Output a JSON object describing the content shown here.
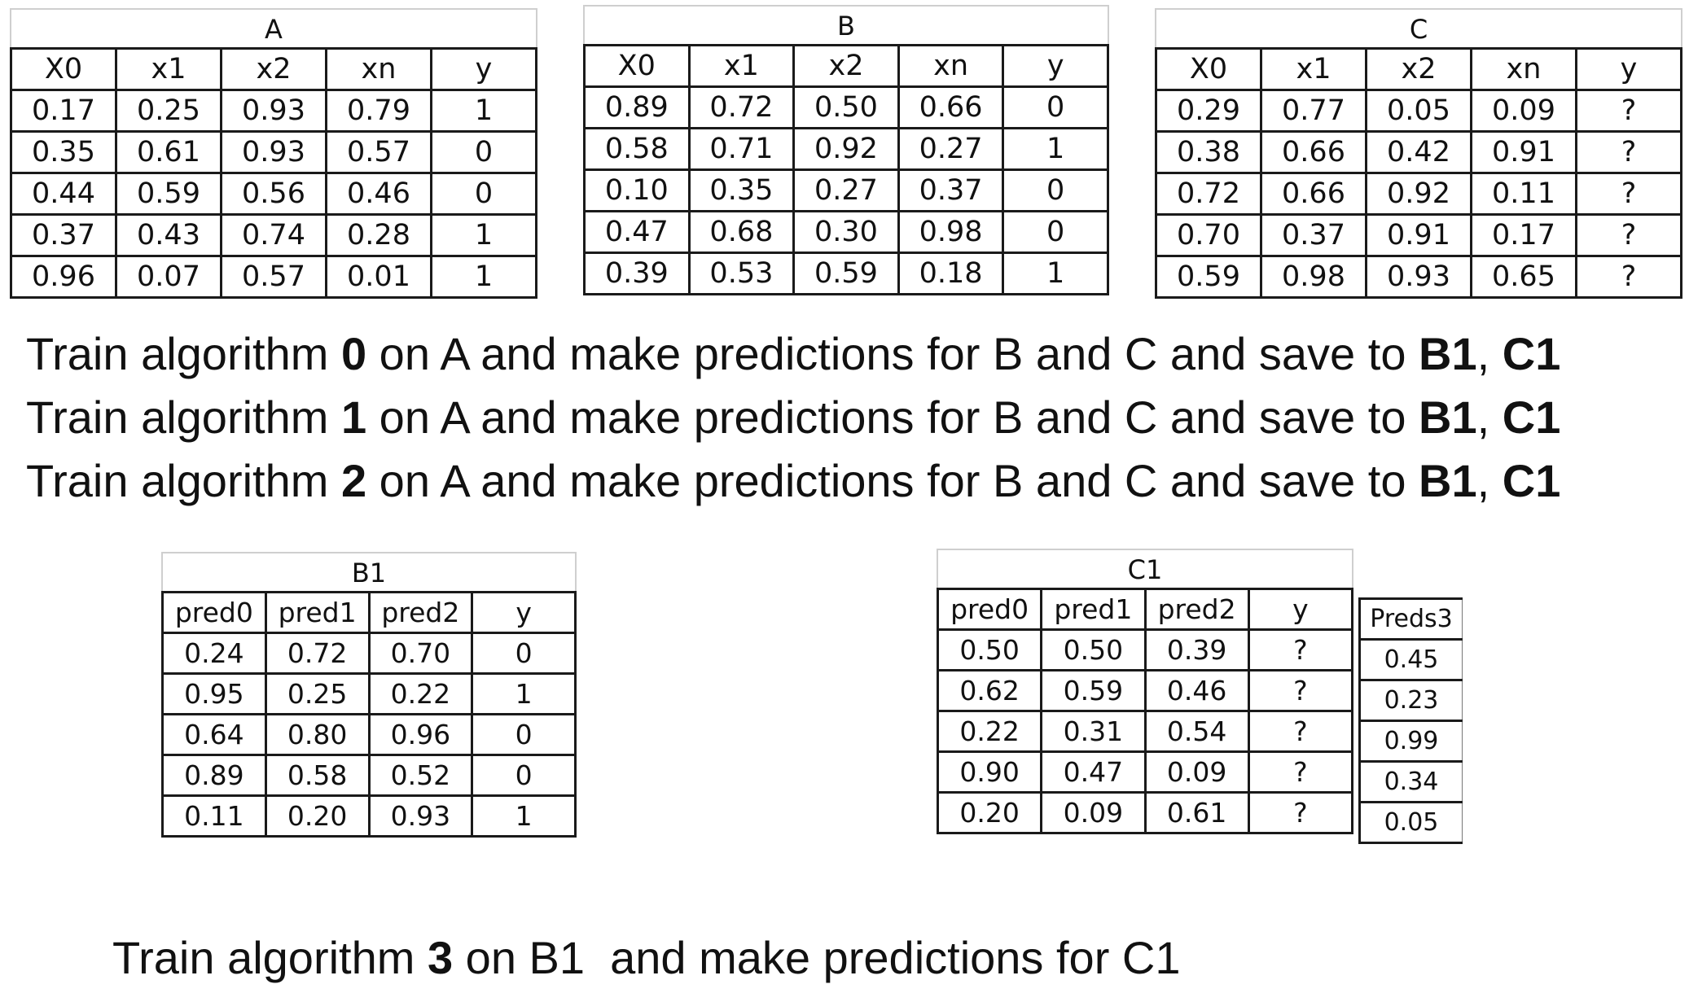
{
  "tables": {
    "A": {
      "title": "A",
      "columns": [
        "X0",
        "x1",
        "x2",
        "xn",
        "y"
      ],
      "rows": [
        [
          "0.17",
          "0.25",
          "0.93",
          "0.79",
          "1"
        ],
        [
          "0.35",
          "0.61",
          "0.93",
          "0.57",
          "0"
        ],
        [
          "0.44",
          "0.59",
          "0.56",
          "0.46",
          "0"
        ],
        [
          "0.37",
          "0.43",
          "0.74",
          "0.28",
          "1"
        ],
        [
          "0.96",
          "0.07",
          "0.57",
          "0.01",
          "1"
        ]
      ]
    },
    "B": {
      "title": "B",
      "columns": [
        "X0",
        "x1",
        "x2",
        "xn",
        "y"
      ],
      "rows": [
        [
          "0.89",
          "0.72",
          "0.50",
          "0.66",
          "0"
        ],
        [
          "0.58",
          "0.71",
          "0.92",
          "0.27",
          "1"
        ],
        [
          "0.10",
          "0.35",
          "0.27",
          "0.37",
          "0"
        ],
        [
          "0.47",
          "0.68",
          "0.30",
          "0.98",
          "0"
        ],
        [
          "0.39",
          "0.53",
          "0.59",
          "0.18",
          "1"
        ]
      ]
    },
    "C": {
      "title": "C",
      "columns": [
        "X0",
        "x1",
        "x2",
        "xn",
        "y"
      ],
      "rows": [
        [
          "0.29",
          "0.77",
          "0.05",
          "0.09",
          "?"
        ],
        [
          "0.38",
          "0.66",
          "0.42",
          "0.91",
          "?"
        ],
        [
          "0.72",
          "0.66",
          "0.92",
          "0.11",
          "?"
        ],
        [
          "0.70",
          "0.37",
          "0.91",
          "0.17",
          "?"
        ],
        [
          "0.59",
          "0.98",
          "0.93",
          "0.65",
          "?"
        ]
      ]
    },
    "B1": {
      "title": "B1",
      "columns": [
        "pred0",
        "pred1",
        "pred2",
        "y"
      ],
      "rows": [
        [
          "0.24",
          "0.72",
          "0.70",
          "0"
        ],
        [
          "0.95",
          "0.25",
          "0.22",
          "1"
        ],
        [
          "0.64",
          "0.80",
          "0.96",
          "0"
        ],
        [
          "0.89",
          "0.58",
          "0.52",
          "0"
        ],
        [
          "0.11",
          "0.20",
          "0.93",
          "1"
        ]
      ]
    },
    "C1": {
      "title": "C1",
      "columns": [
        "pred0",
        "pred1",
        "pred2",
        "y"
      ],
      "rows": [
        [
          "0.50",
          "0.50",
          "0.39",
          "?"
        ],
        [
          "0.62",
          "0.59",
          "0.46",
          "?"
        ],
        [
          "0.22",
          "0.31",
          "0.54",
          "?"
        ],
        [
          "0.90",
          "0.47",
          "0.09",
          "?"
        ],
        [
          "0.20",
          "0.09",
          "0.61",
          "?"
        ]
      ]
    },
    "Preds3": {
      "header": "Preds3",
      "values": [
        "0.45",
        "0.23",
        "0.99",
        "0.34",
        "0.05"
      ]
    }
  },
  "instructions": [
    {
      "prefix": "Train algorithm ",
      "algo": "0",
      "middle": " on A and make predictions for B and C and save to ",
      "target1": "B1",
      "sep": ", ",
      "target2": "C1"
    },
    {
      "prefix": "Train algorithm ",
      "algo": "1",
      "middle": " on A and make predictions for B and C and save to ",
      "target1": "B1",
      "sep": ", ",
      "target2": "C1"
    },
    {
      "prefix": "Train algorithm ",
      "algo": "2",
      "middle": " on A and make predictions for B and C and save to ",
      "target1": "B1",
      "sep": ", ",
      "target2": "C1"
    }
  ],
  "final_instruction": {
    "prefix": "Train algorithm ",
    "algo": "3",
    "suffix": " on B1  and make predictions for C1"
  }
}
